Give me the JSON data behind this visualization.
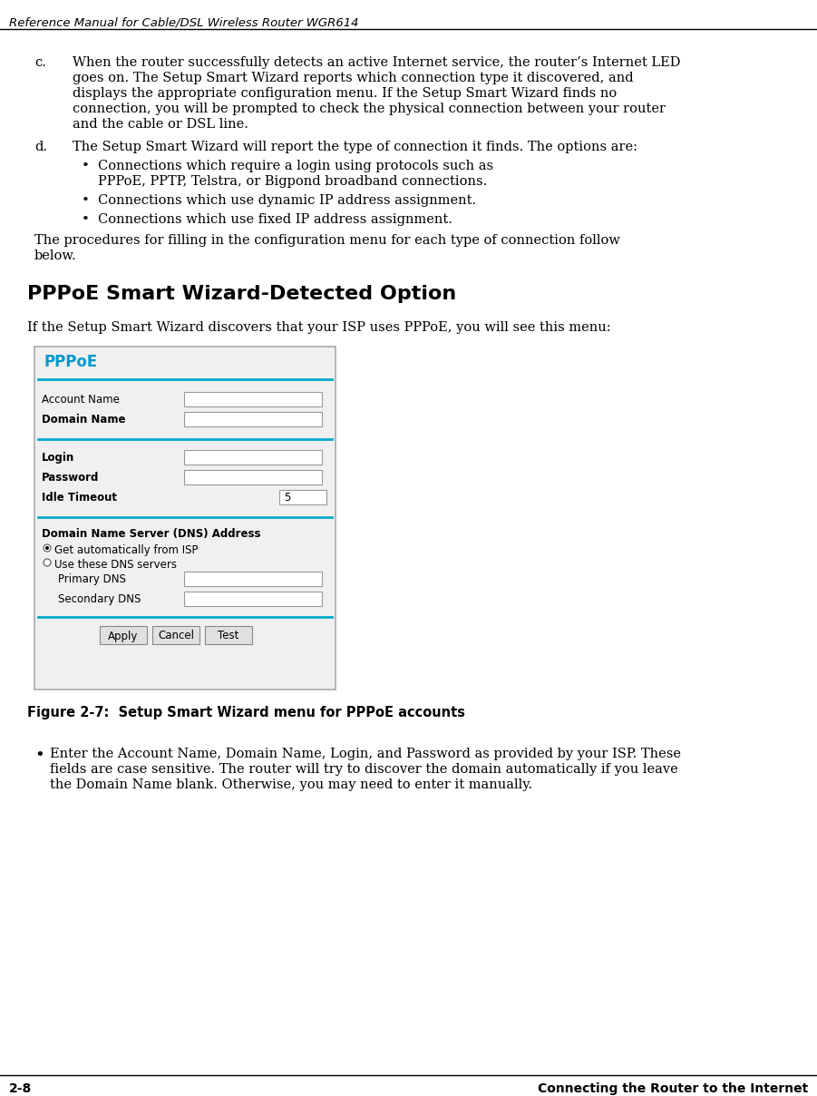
{
  "header_title": "Reference Manual for Cable/DSL Wireless Router WGR614",
  "bg_color": "#ffffff",
  "text_color": "#000000",
  "footer_left": "2-8",
  "footer_right": "Connecting the Router to the Internet",
  "section_c_lines": [
    "When the router successfully detects an active Internet service, the router’s Internet LED",
    "goes on. The Setup Smart Wizard reports which connection type it discovered, and",
    "displays the appropriate configuration menu. If the Setup Smart Wizard finds no",
    "connection, you will be prompted to check the physical connection between your router",
    "and the cable or DSL line."
  ],
  "section_d_text": "The Setup Smart Wizard will report the type of connection it finds. The options are:",
  "bullet1_lines": [
    "Connections which require a login using protocols such as",
    "PPPoE, PPTP, Telstra, or Bigpond broadband connections."
  ],
  "bullet2_text": "Connections which use dynamic IP address assignment.",
  "bullet3_text": "Connections which use fixed IP address assignment.",
  "proc_lines": [
    "The procedures for filling in the configuration menu for each type of connection follow",
    "below."
  ],
  "section_heading": "PPPoE Smart Wizard-Detected Option",
  "intro_text": "If the Setup Smart Wizard discovers that your ISP uses PPPoE, you will see this menu:",
  "figure_caption": "Figure 2-7:  Setup Smart Wizard menu for PPPoE accounts",
  "bullet_main_lines": [
    "Enter the Account Name, Domain Name, Login, and Password as provided by your ISP. These",
    "fields are case sensitive. The router will try to discover the domain automatically if you leave",
    "the Domain Name blank. Otherwise, you may need to enter it manually."
  ],
  "pppoe_title": "PPPoE",
  "pppoe_title_color": "#0099cc",
  "pppoe_separator_color": "#00aacc",
  "idle_timeout_value": "5",
  "dns_section_title": "Domain Name Server (DNS) Address",
  "dns_option1": "Get automatically from ISP",
  "dns_option2": "Use these DNS servers",
  "dns_fields": [
    "Primary DNS",
    "Secondary DNS"
  ],
  "buttons": [
    "Apply",
    "Cancel",
    "Test"
  ]
}
